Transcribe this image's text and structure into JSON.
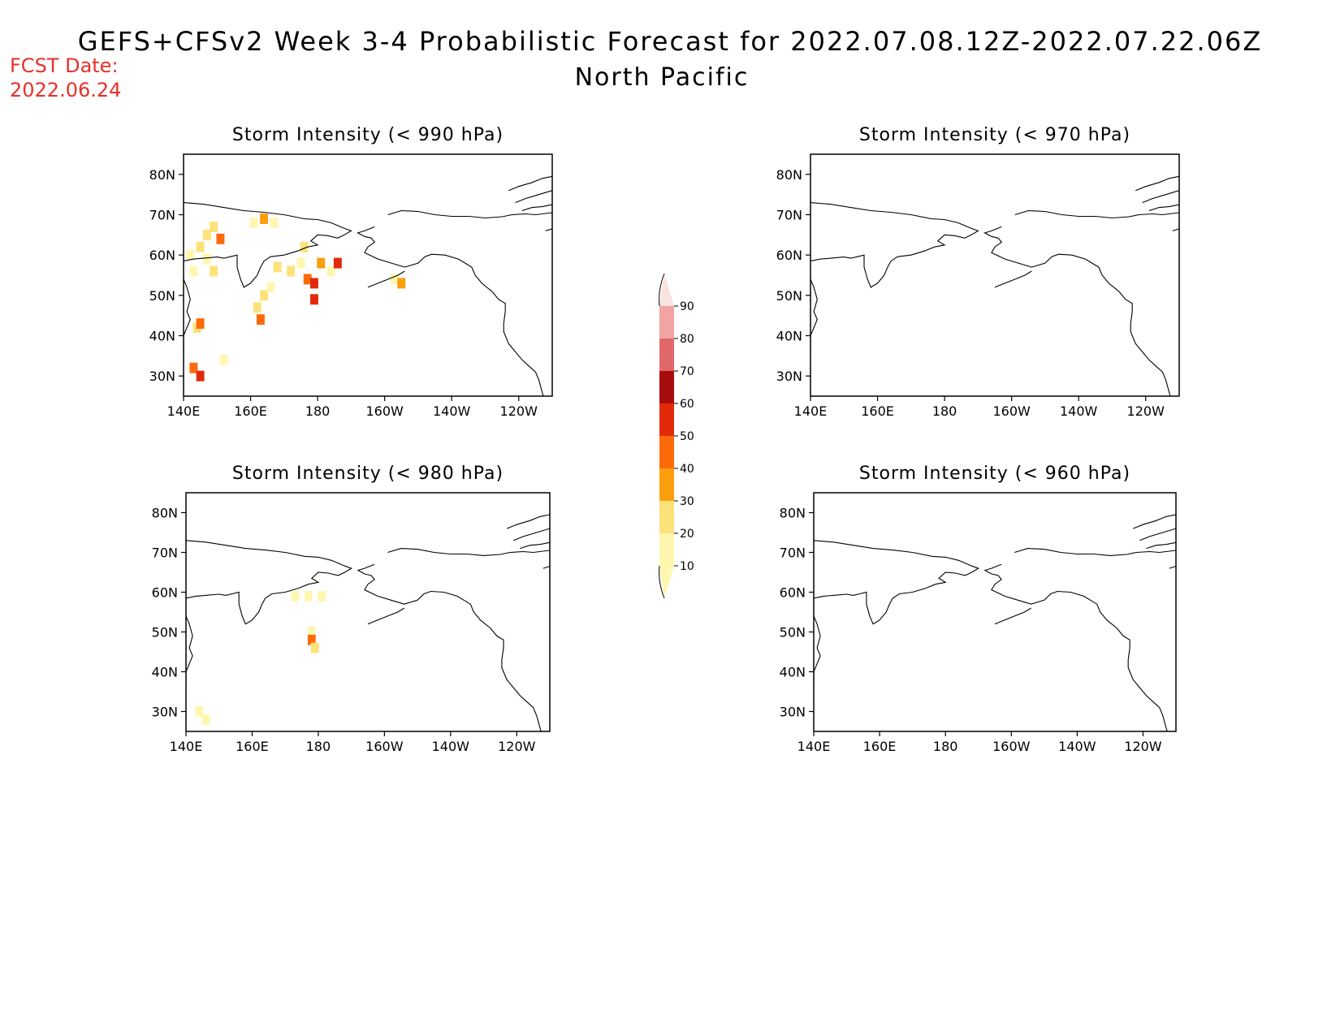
{
  "header": {
    "title": "GEFS+CFSv2 Week 3-4 Probabilistic Forecast for 2022.07.08.12Z-2022.07.22.06Z",
    "subtitle": "North Pacific",
    "fcst_label": "FCST Date:",
    "fcst_date": "2022.06.24"
  },
  "colors": {
    "fcst_text": "#e8302a",
    "levels": [
      "#fff7b0",
      "#fde27a",
      "#fd9e0c",
      "#fd6a0a",
      "#e22a0a",
      "#a80d0d",
      "#e06868",
      "#f2a3a3",
      "#fbe2e2"
    ]
  },
  "axes": {
    "lat_ticks": [
      "80N",
      "70N",
      "60N",
      "50N",
      "40N",
      "30N"
    ],
    "lon_ticks": [
      "140E",
      "160E",
      "180",
      "160W",
      "140W",
      "120W"
    ]
  },
  "colorbar": {
    "labels": [
      "10",
      "20",
      "30",
      "40",
      "50",
      "60",
      "70",
      "80",
      "90"
    ]
  },
  "panels": [
    {
      "title": "Storm Intensity (< 990 hPa)",
      "cells": [
        {
          "lon": 143,
          "lat": 32,
          "level": 3
        },
        {
          "lon": 145,
          "lat": 30,
          "level": 4
        },
        {
          "lon": 144,
          "lat": 42,
          "level": 1
        },
        {
          "lon": 145,
          "lat": 43,
          "level": 3
        },
        {
          "lon": 152,
          "lat": 34,
          "level": 0
        },
        {
          "lon": 142,
          "lat": 60,
          "level": 0
        },
        {
          "lon": 145,
          "lat": 62,
          "level": 1
        },
        {
          "lon": 147,
          "lat": 65,
          "level": 1
        },
        {
          "lon": 149,
          "lat": 67,
          "level": 1
        },
        {
          "lon": 151,
          "lat": 64,
          "level": 3
        },
        {
          "lon": 147,
          "lat": 59,
          "level": 0
        },
        {
          "lon": 149,
          "lat": 56,
          "level": 1
        },
        {
          "lon": 143,
          "lat": 56,
          "level": 0
        },
        {
          "lon": 161,
          "lat": 68,
          "level": 0
        },
        {
          "lon": 164,
          "lat": 69,
          "level": 2
        },
        {
          "lon": 167,
          "lat": 68,
          "level": 0
        },
        {
          "lon": 162,
          "lat": 47,
          "level": 1
        },
        {
          "lon": 164,
          "lat": 50,
          "level": 1
        },
        {
          "lon": 163,
          "lat": 44,
          "level": 3
        },
        {
          "lon": 166,
          "lat": 52,
          "level": 0
        },
        {
          "lon": 168,
          "lat": 57,
          "level": 1
        },
        {
          "lon": 172,
          "lat": 56,
          "level": 1
        },
        {
          "lon": 175,
          "lat": 58,
          "level": 0
        },
        {
          "lon": 177,
          "lat": 54,
          "level": 3
        },
        {
          "lon": 179,
          "lat": 53,
          "level": 4
        },
        {
          "lon": 176,
          "lat": 62,
          "level": 1
        },
        {
          "lon": 181,
          "lat": 58,
          "level": 2
        },
        {
          "lon": 184,
          "lat": 56,
          "level": 0
        },
        {
          "lon": 186,
          "lat": 58,
          "level": 4
        },
        {
          "lon": 179,
          "lat": 49,
          "level": 4
        },
        {
          "lon": 203,
          "lat": 54,
          "level": 0
        },
        {
          "lon": 205,
          "lat": 53,
          "level": 2
        }
      ]
    },
    {
      "title": "Storm Intensity (< 970 hPa)",
      "cells": []
    },
    {
      "title": "Storm Intensity (< 980 hPa)",
      "cells": [
        {
          "lon": 144,
          "lat": 30,
          "level": 0
        },
        {
          "lon": 146,
          "lat": 28,
          "level": 0
        },
        {
          "lon": 173,
          "lat": 59,
          "level": 0
        },
        {
          "lon": 177,
          "lat": 59,
          "level": 0
        },
        {
          "lon": 181,
          "lat": 59,
          "level": 0
        },
        {
          "lon": 178,
          "lat": 50,
          "level": 0
        },
        {
          "lon": 178,
          "lat": 48,
          "level": 3
        },
        {
          "lon": 179,
          "lat": 46,
          "level": 1
        }
      ]
    },
    {
      "title": "Storm Intensity (< 960 hPa)",
      "cells": []
    }
  ]
}
